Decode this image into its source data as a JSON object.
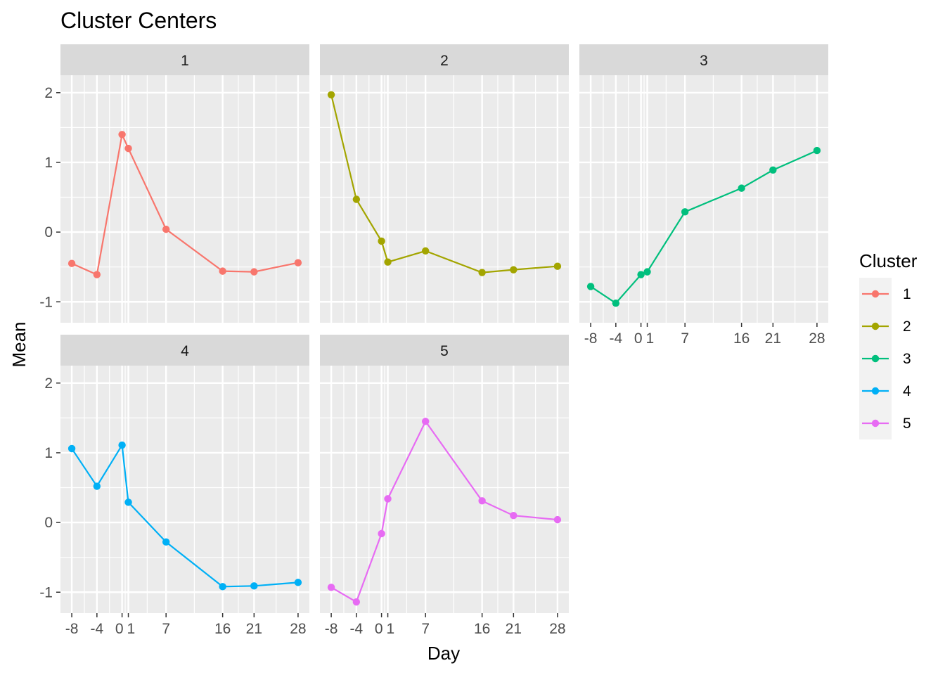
{
  "chart_data": {
    "type": "line",
    "title": "Cluster Centers",
    "xlabel": "Day",
    "ylabel": "Mean",
    "facet_layout": "2 rows x 3 columns",
    "x": [
      -8,
      -4,
      0,
      1,
      7,
      16,
      21,
      28
    ],
    "x_tick_labels": [
      "-8",
      "-4",
      "0",
      "1",
      "7",
      "16",
      "21",
      "28"
    ],
    "xlim": [
      -9.8,
      29.8
    ],
    "ylim": [
      -1.3,
      2.25
    ],
    "y_ticks": [
      -1,
      0,
      1,
      2
    ],
    "y_tick_labels": [
      "-1",
      "0",
      "1",
      "2"
    ],
    "grid": true,
    "legend": {
      "title": "Cluster",
      "position": "right"
    },
    "series": [
      {
        "name": "1",
        "color": "#F8766D",
        "values": [
          -0.45,
          -0.61,
          1.4,
          1.2,
          0.04,
          -0.56,
          -0.57,
          -0.44
        ]
      },
      {
        "name": "2",
        "color": "#A3A500",
        "values": [
          1.97,
          0.47,
          -0.13,
          -0.43,
          -0.27,
          -0.58,
          -0.54,
          -0.49
        ]
      },
      {
        "name": "3",
        "color": "#00BF7D",
        "values": [
          -0.78,
          -1.02,
          -0.61,
          -0.57,
          0.29,
          0.63,
          0.89,
          1.17
        ]
      },
      {
        "name": "4",
        "color": "#00B0F6",
        "values": [
          1.06,
          0.52,
          1.11,
          0.29,
          -0.28,
          -0.92,
          -0.91,
          -0.86
        ]
      },
      {
        "name": "5",
        "color": "#E76BF3",
        "values": [
          -0.93,
          -1.14,
          -0.16,
          0.34,
          1.45,
          0.31,
          0.1,
          0.04
        ]
      }
    ]
  }
}
